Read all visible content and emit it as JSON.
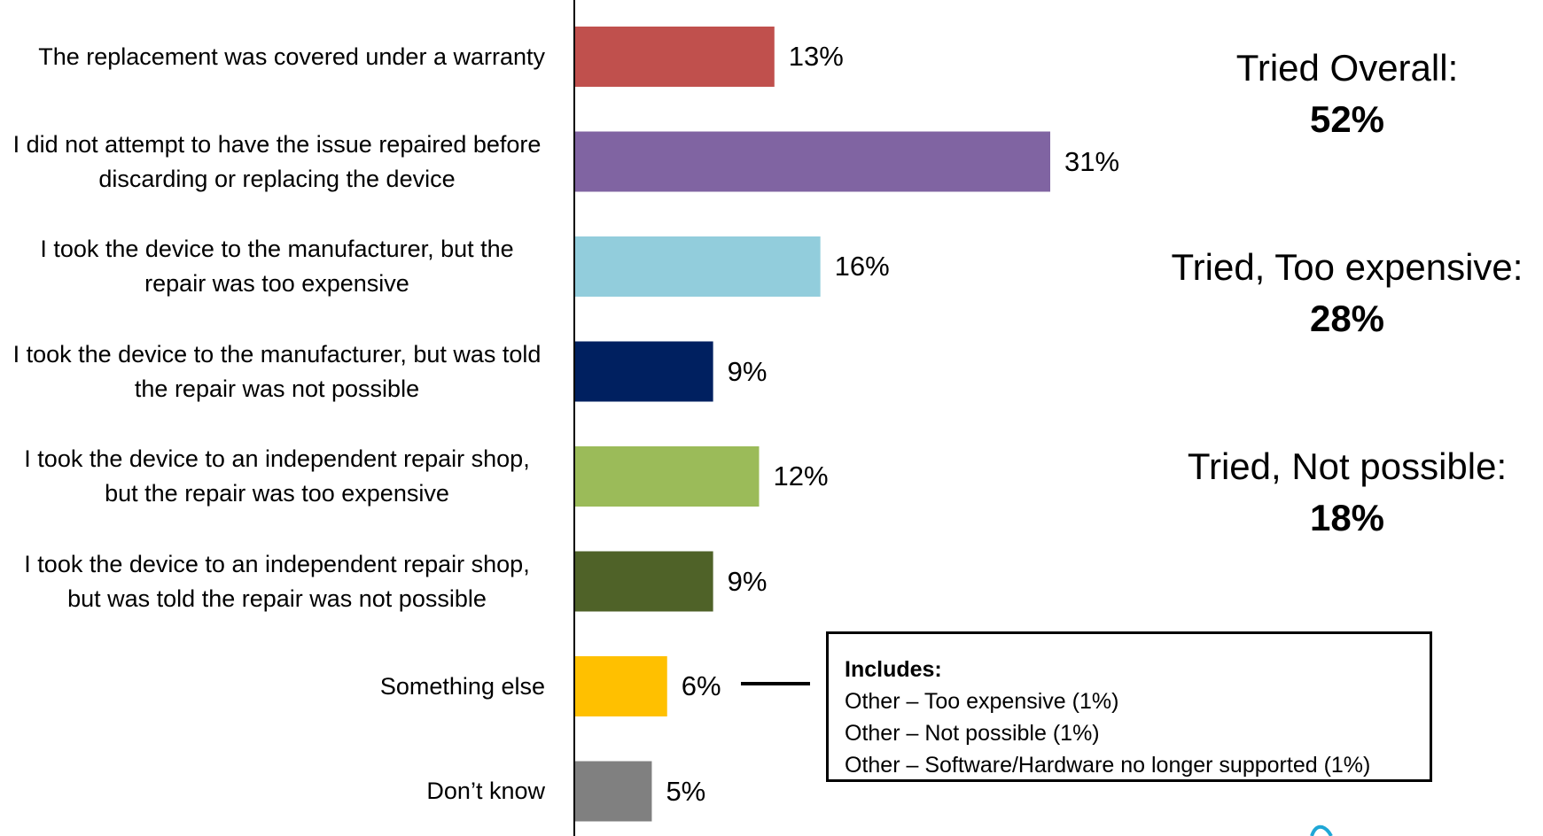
{
  "chart_data": {
    "type": "bar",
    "orientation": "horizontal",
    "categories": [
      "The replacement was covered under a warranty",
      "I did not attempt to have the issue repaired before discarding or replacing the device",
      "I took the device to the manufacturer, but the repair was too expensive",
      "I took the device to the manufacturer, but was told the repair was not possible",
      "I took the device to an independent repair shop, but the repair was too expensive",
      "I took the device to an independent repair shop, but was told the repair was not possible",
      "Something else",
      "Don’t know"
    ],
    "values": [
      13,
      31,
      16,
      9,
      12,
      9,
      6,
      5
    ],
    "value_labels": [
      "13%",
      "31%",
      "16%",
      "9%",
      "12%",
      "9%",
      "6%",
      "5%"
    ],
    "colors": [
      "#c0504d",
      "#8064a2",
      "#92cddc",
      "#002060",
      "#9bbb59",
      "#4f6228",
      "#ffc000",
      "#808080"
    ],
    "xlim": [
      0,
      40
    ],
    "grid": false,
    "legend": "none"
  },
  "summary": [
    {
      "label": "Tried Overall:",
      "value": "52%"
    },
    {
      "label": "Tried, Too expensive:",
      "value": "28%"
    },
    {
      "label": "Tried, Not possible:",
      "value": "18%"
    }
  ],
  "note": {
    "title": "Includes:",
    "lines": [
      "Other – Too expensive (1%)",
      "Other – Not possible (1%)",
      "Other – Software/Hardware no longer supported (1%)"
    ]
  },
  "colors": {
    "axis": "#000000",
    "logo_accent": "#1fa7d6"
  }
}
